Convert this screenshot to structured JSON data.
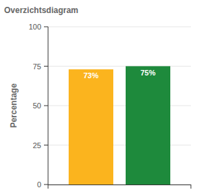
{
  "chart_data": {
    "type": "bar",
    "title": "Overzichtsdiagram",
    "y_label": "Percentage",
    "categories": [
      null,
      null
    ],
    "values": [
      73,
      75
    ],
    "value_labels": [
      "73%",
      "75%"
    ],
    "colors": [
      "#fbb41e",
      "#1e8a3c"
    ],
    "ylim": [
      0,
      100
    ],
    "yticks": [
      0,
      25,
      50,
      75,
      100
    ],
    "grid": true,
    "data_labels": true
  }
}
